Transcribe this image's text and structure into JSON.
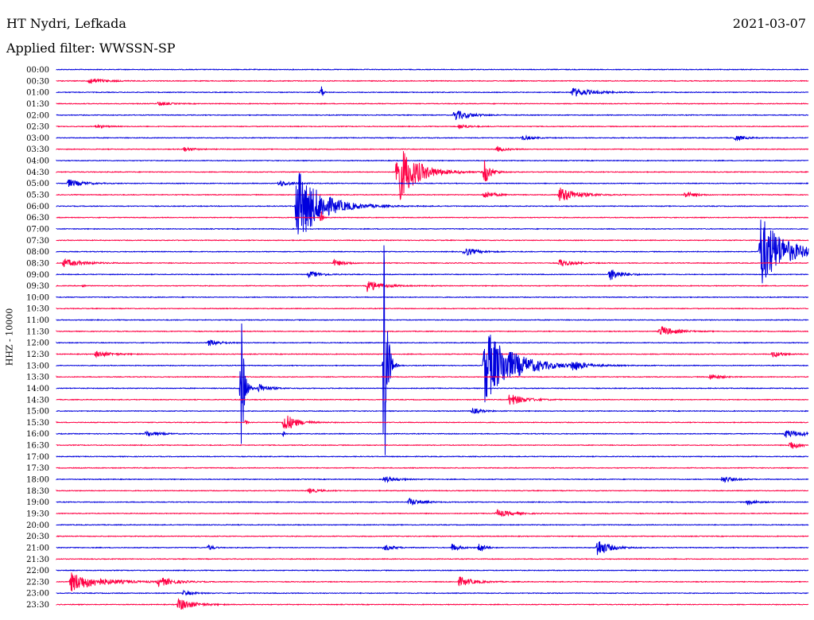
{
  "header": {
    "station": "HT Nydri, Lefkada",
    "date": "2021-03-07",
    "filter": "Applied filter: WWSSN-SP"
  },
  "chart_data": {
    "type": "line",
    "title": "HT Nydri, Lefkada",
    "ylabel": "HHZ - 10000",
    "rows": [
      "00:00",
      "00:30",
      "01:00",
      "01:30",
      "02:00",
      "02:30",
      "03:00",
      "03:30",
      "04:00",
      "04:30",
      "05:00",
      "05:30",
      "06:00",
      "06:30",
      "07:00",
      "07:30",
      "08:00",
      "08:30",
      "09:00",
      "09:30",
      "10:00",
      "10:30",
      "11:00",
      "11:30",
      "12:00",
      "12:30",
      "13:00",
      "13:30",
      "14:00",
      "14:30",
      "15:00",
      "15:30",
      "16:00",
      "16:30",
      "17:00",
      "17:30",
      "18:00",
      "18:30",
      "19:00",
      "19:30",
      "20:00",
      "20:30",
      "21:00",
      "21:30",
      "22:00",
      "22:30",
      "23:00",
      "23:30"
    ],
    "colors": [
      "#0000dd",
      "#ff0044"
    ],
    "x_range_minutes": [
      0,
      30
    ],
    "grid": false,
    "events": [
      {
        "row": 1,
        "minute": 1.2,
        "amp": 4,
        "dur": 1.5
      },
      {
        "row": 2,
        "minute": 10.5,
        "amp": 10,
        "dur": 0.15
      },
      {
        "row": 2,
        "minute": 20.5,
        "amp": 6,
        "dur": 2.0
      },
      {
        "row": 3,
        "minute": 4.0,
        "amp": 3,
        "dur": 1.0
      },
      {
        "row": 4,
        "minute": 15.8,
        "amp": 7,
        "dur": 1.5
      },
      {
        "row": 5,
        "minute": 1.5,
        "amp": 2,
        "dur": 1.0
      },
      {
        "row": 5,
        "minute": 16.0,
        "amp": 3,
        "dur": 1.0
      },
      {
        "row": 6,
        "minute": 18.5,
        "amp": 3,
        "dur": 1.0
      },
      {
        "row": 6,
        "minute": 27.0,
        "amp": 4,
        "dur": 1.0
      },
      {
        "row": 7,
        "minute": 5.0,
        "amp": 3,
        "dur": 1.0
      },
      {
        "row": 7,
        "minute": 17.5,
        "amp": 3,
        "dur": 1.0
      },
      {
        "row": 9,
        "minute": 13.5,
        "amp": 42,
        "dur": 2.0
      },
      {
        "row": 9,
        "minute": 17.0,
        "amp": 17,
        "dur": 0.6
      },
      {
        "row": 10,
        "minute": 0.4,
        "amp": 5,
        "dur": 1.5
      },
      {
        "row": 10,
        "minute": 8.8,
        "amp": 4,
        "dur": 1.2
      },
      {
        "row": 11,
        "minute": 17.0,
        "amp": 5,
        "dur": 1.0
      },
      {
        "row": 11,
        "minute": 20.0,
        "amp": 10,
        "dur": 1.8
      },
      {
        "row": 11,
        "minute": 25.0,
        "amp": 4,
        "dur": 1.0
      },
      {
        "row": 12,
        "minute": 9.5,
        "amp": 50,
        "dur": 2.5
      },
      {
        "row": 13,
        "minute": 10.5,
        "amp": 12,
        "dur": 0.1
      },
      {
        "row": 16,
        "minute": 28.0,
        "amp": 48,
        "dur": 2.5
      },
      {
        "row": 16,
        "minute": 16.2,
        "amp": 6,
        "dur": 1.2
      },
      {
        "row": 17,
        "minute": 0.2,
        "amp": 5,
        "dur": 2.0
      },
      {
        "row": 17,
        "minute": 11.0,
        "amp": 4,
        "dur": 1.2
      },
      {
        "row": 17,
        "minute": 20.0,
        "amp": 5,
        "dur": 1.2
      },
      {
        "row": 18,
        "minute": 10.0,
        "amp": 4,
        "dur": 1.2
      },
      {
        "row": 18,
        "minute": 22.0,
        "amp": 8,
        "dur": 1.2
      },
      {
        "row": 19,
        "minute": 12.3,
        "amp": 8,
        "dur": 1.5
      },
      {
        "row": 19,
        "minute": 1.0,
        "amp": 4,
        "dur": 0.1
      },
      {
        "row": 24,
        "minute": 6.0,
        "amp": 4,
        "dur": 1.2
      },
      {
        "row": 23,
        "minute": 24.0,
        "amp": 7,
        "dur": 1.5
      },
      {
        "row": 25,
        "minute": 1.5,
        "amp": 4,
        "dur": 1.5
      },
      {
        "row": 25,
        "minute": 28.5,
        "amp": 4,
        "dur": 1.0
      },
      {
        "row": 26,
        "minute": 17.0,
        "amp": 48,
        "dur": 3.0
      },
      {
        "row": 26,
        "minute": 13.0,
        "amp": 205,
        "dur": 0.3
      },
      {
        "row": 26,
        "minute": 20.5,
        "amp": 6,
        "dur": 1.2
      },
      {
        "row": 27,
        "minute": 26.0,
        "amp": 4,
        "dur": 1.0
      },
      {
        "row": 28,
        "minute": 7.3,
        "amp": 95,
        "dur": 0.3
      },
      {
        "row": 28,
        "minute": 8.0,
        "amp": 6,
        "dur": 1.0
      },
      {
        "row": 29,
        "minute": 18.0,
        "amp": 8,
        "dur": 1.5
      },
      {
        "row": 30,
        "minute": 16.5,
        "amp": 4,
        "dur": 1.0
      },
      {
        "row": 31,
        "minute": 9.0,
        "amp": 13,
        "dur": 1.2
      },
      {
        "row": 31,
        "minute": 7.5,
        "amp": 5,
        "dur": 0.1
      },
      {
        "row": 32,
        "minute": 3.5,
        "amp": 4,
        "dur": 1.2
      },
      {
        "row": 32,
        "minute": 9.0,
        "amp": 5,
        "dur": 0.1
      },
      {
        "row": 32,
        "minute": 29.0,
        "amp": 5,
        "dur": 2.0
      },
      {
        "row": 33,
        "minute": 29.2,
        "amp": 6,
        "dur": 1.0
      },
      {
        "row": 36,
        "minute": 13.0,
        "amp": 4,
        "dur": 1.2
      },
      {
        "row": 36,
        "minute": 26.5,
        "amp": 5,
        "dur": 1.0
      },
      {
        "row": 37,
        "minute": 10.0,
        "amp": 3,
        "dur": 1.0
      },
      {
        "row": 38,
        "minute": 14.0,
        "amp": 5,
        "dur": 1.2
      },
      {
        "row": 38,
        "minute": 27.5,
        "amp": 3,
        "dur": 1.0
      },
      {
        "row": 39,
        "minute": 17.5,
        "amp": 5,
        "dur": 1.5
      },
      {
        "row": 42,
        "minute": 6.0,
        "amp": 4,
        "dur": 0.5
      },
      {
        "row": 42,
        "minute": 13.0,
        "amp": 4,
        "dur": 1.0
      },
      {
        "row": 42,
        "minute": 15.7,
        "amp": 5,
        "dur": 0.8
      },
      {
        "row": 42,
        "minute": 16.8,
        "amp": 8,
        "dur": 0.5
      },
      {
        "row": 42,
        "minute": 21.5,
        "amp": 12,
        "dur": 1.2
      },
      {
        "row": 45,
        "minute": 0.5,
        "amp": 12,
        "dur": 3.0
      },
      {
        "row": 45,
        "minute": 4.0,
        "amp": 6,
        "dur": 1.5
      },
      {
        "row": 45,
        "minute": 16.0,
        "amp": 6,
        "dur": 1.5
      },
      {
        "row": 46,
        "minute": 5.0,
        "amp": 3,
        "dur": 1.0
      },
      {
        "row": 47,
        "minute": 4.8,
        "amp": 8,
        "dur": 1.5
      }
    ]
  }
}
